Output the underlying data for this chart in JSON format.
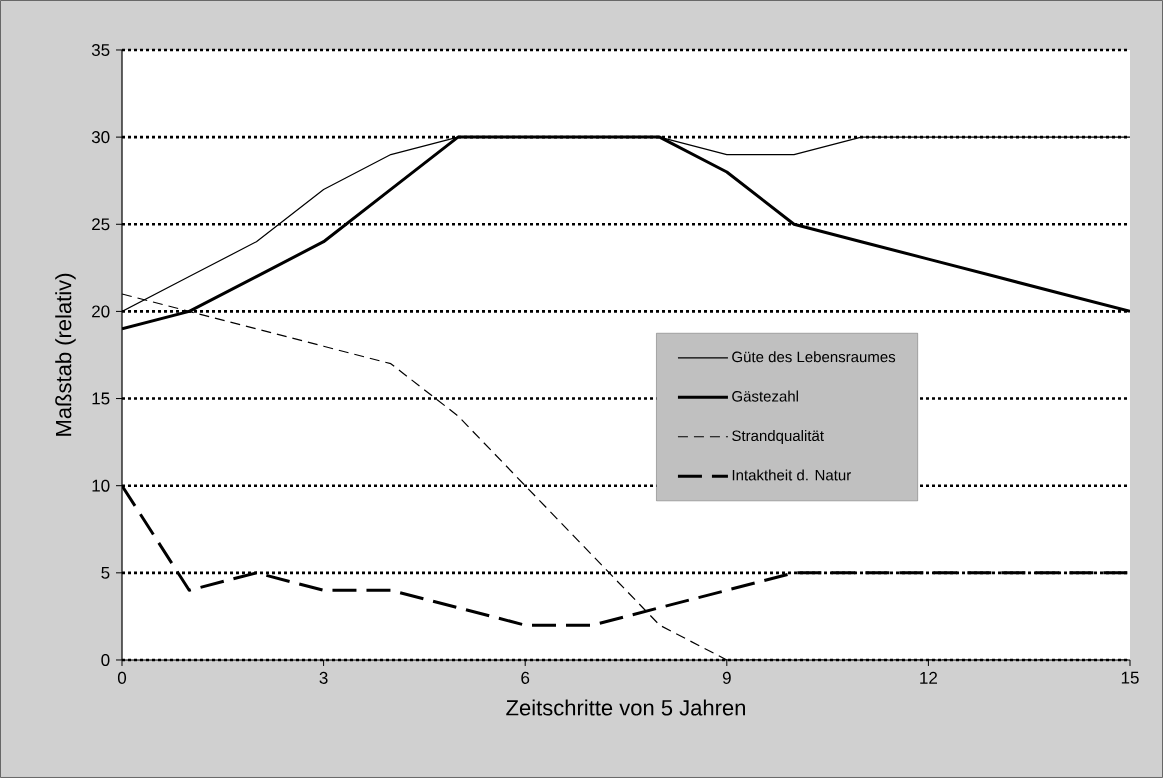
{
  "chart_data": {
    "type": "line",
    "xlabel": "Zeitschritte von 5 Jahren",
    "ylabel": "Maßstab (relativ)",
    "x": [
      0,
      1,
      2,
      3,
      4,
      5,
      6,
      7,
      8,
      9,
      10,
      11,
      12,
      13,
      14,
      15
    ],
    "xlim": [
      0,
      15
    ],
    "ylim": [
      0,
      35
    ],
    "xticks": [
      0,
      3,
      6,
      9,
      12,
      15
    ],
    "yticks": [
      0,
      5,
      10,
      15,
      20,
      25,
      30,
      35
    ],
    "grid": "y",
    "legend": "right",
    "marker": "none",
    "series": [
      {
        "name": "Güte des Lebensraumes",
        "color": "#000000",
        "line_style": "solid",
        "values": [
          20,
          22,
          24,
          27,
          29,
          30,
          30,
          30,
          30,
          29,
          29,
          30,
          30,
          30,
          30,
          30
        ]
      },
      {
        "name": "Gästezahl",
        "color": "#000000",
        "line_style": "solid",
        "values": [
          19,
          20,
          22,
          24,
          27,
          30,
          30,
          30,
          30,
          28,
          25,
          24,
          23,
          22,
          21,
          20
        ]
      },
      {
        "name": "Strandqualität",
        "color": "#000000",
        "line_style": "dashed",
        "values": [
          21,
          20,
          19,
          18,
          17,
          14,
          10,
          6,
          2,
          0,
          0,
          0,
          0,
          0,
          0,
          0
        ]
      },
      {
        "name": "Intaktheit d. Natur",
        "color": "#000000",
        "line_style": "dashed",
        "values": [
          10,
          4,
          5,
          4,
          4,
          3,
          2,
          2,
          3,
          4,
          5,
          5,
          5,
          5,
          5,
          5
        ]
      }
    ]
  }
}
